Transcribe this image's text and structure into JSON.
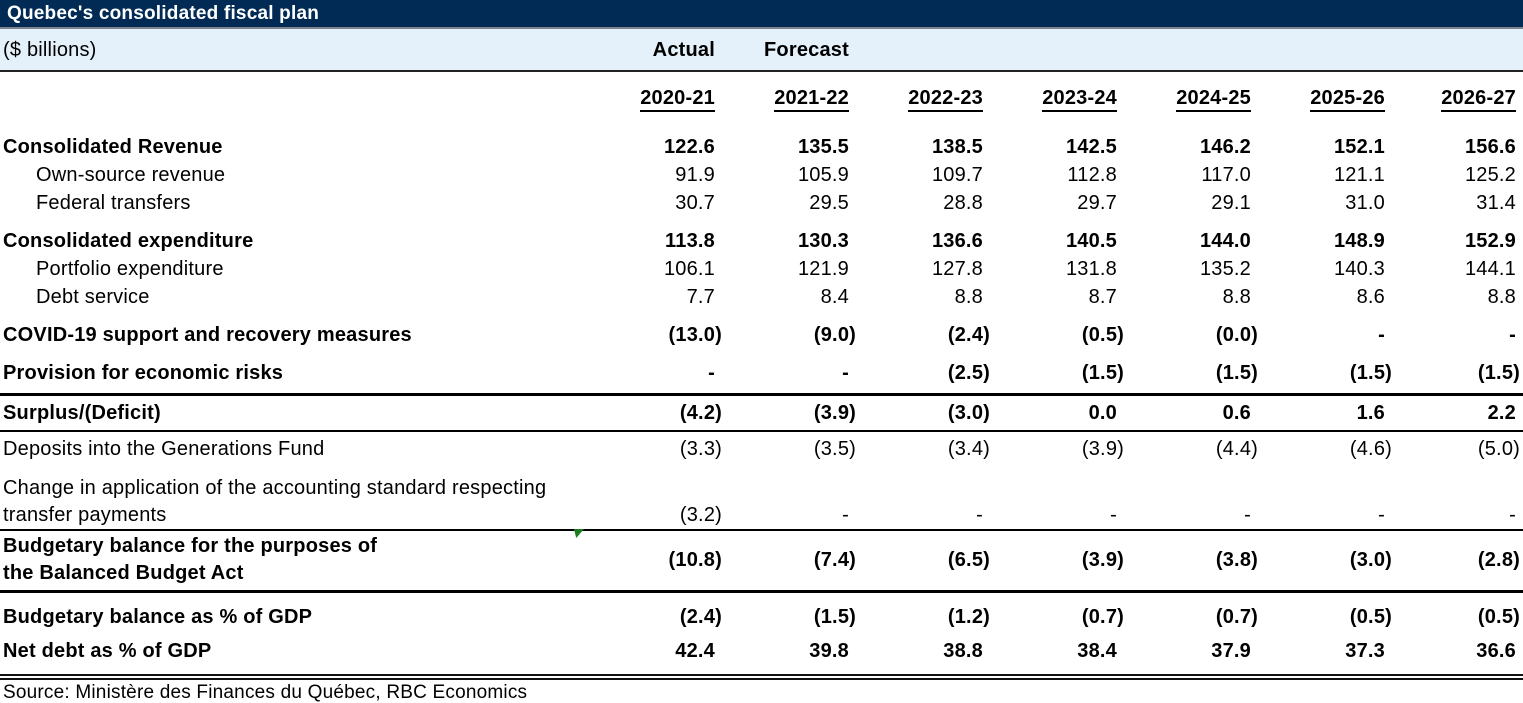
{
  "chart_data": {
    "type": "table",
    "title": "Quebec's consolidated fiscal plan",
    "unit_label": "($ billions)",
    "period_labels": {
      "actual": "Actual",
      "forecast": "Forecast"
    },
    "columns": [
      "2020-21",
      "2021-22",
      "2022-23",
      "2023-24",
      "2024-25",
      "2025-26",
      "2026-27"
    ],
    "rows": [
      {
        "label": "Consolidated Revenue",
        "bold": true,
        "cls": "first",
        "values": [
          "122.6",
          "135.5",
          "138.5",
          "142.5",
          "146.2",
          "152.1",
          "156.6"
        ]
      },
      {
        "label": "Own-source revenue",
        "indent": true,
        "values": [
          "91.9",
          "105.9",
          "109.7",
          "112.8",
          "117.0",
          "121.1",
          "125.2"
        ]
      },
      {
        "label": "Federal transfers",
        "indent": true,
        "values": [
          "30.7",
          "29.5",
          "28.8",
          "29.7",
          "29.1",
          "31.0",
          "31.4"
        ]
      },
      {
        "label": "Consolidated expenditure",
        "bold": true,
        "cls": "gap",
        "values": [
          "113.8",
          "130.3",
          "136.6",
          "140.5",
          "144.0",
          "148.9",
          "152.9"
        ]
      },
      {
        "label": "Portfolio expenditure",
        "indent": true,
        "values": [
          "106.1",
          "121.9",
          "127.8",
          "131.8",
          "135.2",
          "140.3",
          "144.1"
        ]
      },
      {
        "label": "Debt service",
        "indent": true,
        "values": [
          "7.7",
          "8.4",
          "8.8",
          "8.7",
          "8.8",
          "8.6",
          "8.8"
        ]
      },
      {
        "label": "COVID-19 support and recovery measures",
        "bold": true,
        "cls": "gap",
        "values": [
          "(13.0)",
          "(9.0)",
          "(2.4)",
          "(0.5)",
          "(0.0)",
          "-",
          "-"
        ]
      },
      {
        "label": "Provision for economic risks",
        "bold": true,
        "cls": "gap pbot",
        "values": [
          "-",
          "-",
          "(2.5)",
          "(1.5)",
          "(1.5)",
          "(1.5)",
          "(1.5)"
        ]
      },
      {
        "label": "Surplus/(Deficit)",
        "bold": true,
        "cls": "surplus",
        "values": [
          "(4.2)",
          "(3.9)",
          "(3.0)",
          "0.0",
          "0.6",
          "1.6",
          "2.2"
        ]
      },
      {
        "label": "Deposits into the Generations Fund",
        "cls": "tight",
        "values": [
          "(3.3)",
          "(3.5)",
          "(3.4)",
          "(3.9)",
          "(4.4)",
          "(4.6)",
          "(5.0)"
        ]
      },
      {
        "label": "Change in application of the accounting standard respecting\ntransfer payments",
        "cls": "gap2 twoline",
        "values": [
          "(3.2)",
          "-",
          "-",
          "-",
          "-",
          "-",
          "-"
        ]
      },
      {
        "label": "Budgetary balance for the purposes of\nthe Balanced Budget Act",
        "bold": true,
        "cls": "budget twoline",
        "has_marker": true,
        "values": [
          "(10.8)",
          "(7.4)",
          "(6.5)",
          "(3.9)",
          "(3.8)",
          "(3.0)",
          "(2.8)"
        ]
      },
      {
        "label": "Budgetary balance as % of GDP",
        "bold": true,
        "cls": "gap",
        "values": [
          "(2.4)",
          "(1.5)",
          "(1.2)",
          "(0.7)",
          "(0.7)",
          "(0.5)",
          "(0.5)"
        ]
      },
      {
        "label": "Net debt as % of GDP",
        "bold": true,
        "cls": "gap-sm",
        "values": [
          "42.4",
          "39.8",
          "38.8",
          "38.4",
          "37.9",
          "37.3",
          "36.6"
        ]
      }
    ],
    "source": "Source: Ministère des Finances du Québec, RBC Economics",
    "legend_position": "none",
    "grid": "off"
  },
  "colors": {
    "header_navy": "#012B55",
    "band_blue": "#E4F1FA",
    "border_black": "#000000",
    "divider_gray": "#7D838C",
    "marker_green": "#1B7E21",
    "title_text": "#FFFFFF"
  }
}
